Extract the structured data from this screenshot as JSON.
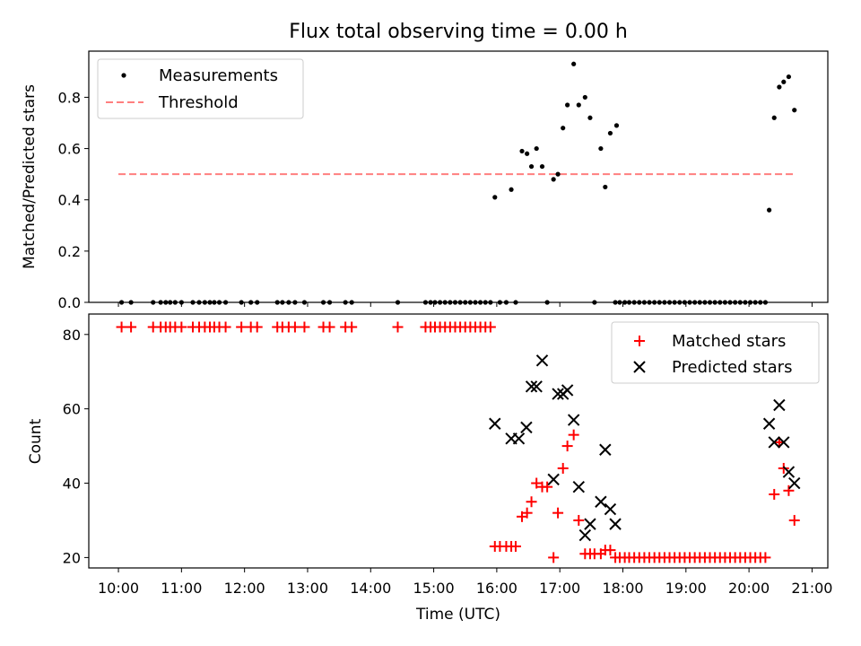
{
  "chart_data": {
    "title": "Flux total observing time = 0.00 h",
    "xlabel": "Time (UTC)",
    "x_ticks": [
      "10:00",
      "11:00",
      "12:00",
      "13:00",
      "14:00",
      "15:00",
      "16:00",
      "17:00",
      "18:00",
      "19:00",
      "20:00",
      "21:00"
    ],
    "xlim": [
      9.53,
      21.25
    ],
    "colors": {
      "measure": "#000000",
      "threshold": "#ff7f7f",
      "matched": "#ff0000",
      "predicted": "#000000"
    },
    "panels": [
      {
        "type": "scatter",
        "ylabel": "Matched/Predicted stars",
        "ylim": [
          0,
          0.98
        ],
        "y_ticks": [
          0.0,
          0.2,
          0.4,
          0.6,
          0.8
        ],
        "y_tick_labels": [
          "0.0",
          "0.2",
          "0.4",
          "0.6",
          "0.8"
        ],
        "legend_position": "upper-left",
        "legend": [
          "Measurements",
          "Threshold"
        ],
        "threshold": {
          "value": 0.5,
          "x_range": [
            10.0,
            20.72
          ]
        },
        "series": [
          {
            "name": "Measurements",
            "points": [
              [
                10.05,
                0
              ],
              [
                10.2,
                0
              ],
              [
                10.55,
                0
              ],
              [
                10.67,
                0
              ],
              [
                10.75,
                0
              ],
              [
                10.82,
                0
              ],
              [
                10.9,
                0
              ],
              [
                11.0,
                0
              ],
              [
                11.18,
                0
              ],
              [
                11.28,
                0
              ],
              [
                11.37,
                0
              ],
              [
                11.45,
                0
              ],
              [
                11.52,
                0
              ],
              [
                11.6,
                0
              ],
              [
                11.7,
                0
              ],
              [
                11.95,
                0
              ],
              [
                12.1,
                0
              ],
              [
                12.2,
                0
              ],
              [
                12.52,
                0
              ],
              [
                12.6,
                0
              ],
              [
                12.7,
                0
              ],
              [
                12.8,
                0
              ],
              [
                12.95,
                0
              ],
              [
                13.25,
                0
              ],
              [
                13.35,
                0
              ],
              [
                13.6,
                0
              ],
              [
                13.7,
                0
              ],
              [
                14.43,
                0
              ],
              [
                14.87,
                0
              ],
              [
                14.95,
                0
              ],
              [
                15.02,
                0
              ],
              [
                15.1,
                0
              ],
              [
                15.18,
                0
              ],
              [
                15.26,
                0
              ],
              [
                15.34,
                0
              ],
              [
                15.42,
                0
              ],
              [
                15.5,
                0
              ],
              [
                15.58,
                0
              ],
              [
                15.66,
                0
              ],
              [
                15.74,
                0
              ],
              [
                15.82,
                0
              ],
              [
                15.9,
                0
              ],
              [
                16.05,
                0
              ],
              [
                16.15,
                0
              ],
              [
                16.3,
                0
              ],
              [
                16.8,
                0
              ],
              [
                17.55,
                0
              ],
              [
                17.88,
                0
              ],
              [
                17.95,
                0
              ],
              [
                18.03,
                0
              ],
              [
                18.1,
                0
              ],
              [
                18.18,
                0
              ],
              [
                18.26,
                0
              ],
              [
                18.34,
                0
              ],
              [
                18.42,
                0
              ],
              [
                18.5,
                0
              ],
              [
                18.58,
                0
              ],
              [
                18.66,
                0
              ],
              [
                18.74,
                0
              ],
              [
                18.82,
                0
              ],
              [
                18.9,
                0
              ],
              [
                18.98,
                0
              ],
              [
                19.06,
                0
              ],
              [
                19.14,
                0
              ],
              [
                19.22,
                0
              ],
              [
                19.3,
                0
              ],
              [
                19.38,
                0
              ],
              [
                19.46,
                0
              ],
              [
                19.54,
                0
              ],
              [
                19.62,
                0
              ],
              [
                19.7,
                0
              ],
              [
                19.78,
                0
              ],
              [
                19.86,
                0
              ],
              [
                19.94,
                0
              ],
              [
                20.02,
                0
              ],
              [
                20.1,
                0
              ],
              [
                20.18,
                0
              ],
              [
                20.26,
                0
              ],
              [
                15.97,
                0.41
              ],
              [
                16.23,
                0.44
              ],
              [
                16.4,
                0.59
              ],
              [
                16.48,
                0.58
              ],
              [
                16.55,
                0.53
              ],
              [
                16.63,
                0.6
              ],
              [
                16.72,
                0.53
              ],
              [
                16.9,
                0.48
              ],
              [
                16.97,
                0.5
              ],
              [
                17.05,
                0.68
              ],
              [
                17.12,
                0.77
              ],
              [
                17.22,
                0.93
              ],
              [
                17.3,
                0.77
              ],
              [
                17.4,
                0.8
              ],
              [
                17.48,
                0.72
              ],
              [
                17.65,
                0.6
              ],
              [
                17.72,
                0.45
              ],
              [
                17.8,
                0.66
              ],
              [
                17.9,
                0.69
              ],
              [
                20.32,
                0.36
              ],
              [
                20.4,
                0.72
              ],
              [
                20.48,
                0.84
              ],
              [
                20.55,
                0.86
              ],
              [
                20.63,
                0.88
              ],
              [
                20.72,
                0.75
              ]
            ]
          }
        ]
      },
      {
        "type": "scatter",
        "ylabel": "Count",
        "ylim": [
          17.2,
          85.5
        ],
        "y_ticks": [
          20,
          40,
          60,
          80
        ],
        "y_tick_labels": [
          "20",
          "40",
          "60",
          "80"
        ],
        "legend_position": "upper-right",
        "legend": [
          "Matched stars",
          "Predicted stars"
        ],
        "series": [
          {
            "name": "Matched stars",
            "marker": "plus",
            "points": [
              [
                10.05,
                82
              ],
              [
                10.2,
                82
              ],
              [
                10.55,
                82
              ],
              [
                10.67,
                82
              ],
              [
                10.75,
                82
              ],
              [
                10.82,
                82
              ],
              [
                10.9,
                82
              ],
              [
                11.0,
                82
              ],
              [
                11.18,
                82
              ],
              [
                11.28,
                82
              ],
              [
                11.37,
                82
              ],
              [
                11.45,
                82
              ],
              [
                11.52,
                82
              ],
              [
                11.6,
                82
              ],
              [
                11.7,
                82
              ],
              [
                11.95,
                82
              ],
              [
                12.1,
                82
              ],
              [
                12.2,
                82
              ],
              [
                12.52,
                82
              ],
              [
                12.6,
                82
              ],
              [
                12.7,
                82
              ],
              [
                12.8,
                82
              ],
              [
                12.95,
                82
              ],
              [
                13.25,
                82
              ],
              [
                13.35,
                82
              ],
              [
                13.6,
                82
              ],
              [
                13.7,
                82
              ],
              [
                14.43,
                82
              ],
              [
                14.87,
                82
              ],
              [
                14.95,
                82
              ],
              [
                15.02,
                82
              ],
              [
                15.1,
                82
              ],
              [
                15.18,
                82
              ],
              [
                15.26,
                82
              ],
              [
                15.34,
                82
              ],
              [
                15.42,
                82
              ],
              [
                15.5,
                82
              ],
              [
                15.58,
                82
              ],
              [
                15.66,
                82
              ],
              [
                15.74,
                82
              ],
              [
                15.82,
                82
              ],
              [
                15.9,
                82
              ],
              [
                15.97,
                23
              ],
              [
                16.05,
                23
              ],
              [
                16.15,
                23
              ],
              [
                16.23,
                23
              ],
              [
                16.3,
                23
              ],
              [
                16.4,
                31
              ],
              [
                16.48,
                32
              ],
              [
                16.55,
                35
              ],
              [
                16.63,
                40
              ],
              [
                16.72,
                39
              ],
              [
                16.8,
                39
              ],
              [
                16.9,
                20
              ],
              [
                16.97,
                32
              ],
              [
                17.05,
                44
              ],
              [
                17.12,
                50
              ],
              [
                17.22,
                53
              ],
              [
                17.3,
                30
              ],
              [
                17.4,
                21
              ],
              [
                17.48,
                21
              ],
              [
                17.55,
                21
              ],
              [
                17.65,
                21
              ],
              [
                17.72,
                22
              ],
              [
                17.8,
                22
              ],
              [
                17.88,
                20
              ],
              [
                17.95,
                20
              ],
              [
                18.03,
                20
              ],
              [
                18.1,
                20
              ],
              [
                18.18,
                20
              ],
              [
                18.26,
                20
              ],
              [
                18.34,
                20
              ],
              [
                18.42,
                20
              ],
              [
                18.5,
                20
              ],
              [
                18.58,
                20
              ],
              [
                18.66,
                20
              ],
              [
                18.74,
                20
              ],
              [
                18.82,
                20
              ],
              [
                18.9,
                20
              ],
              [
                18.98,
                20
              ],
              [
                19.06,
                20
              ],
              [
                19.14,
                20
              ],
              [
                19.22,
                20
              ],
              [
                19.3,
                20
              ],
              [
                19.38,
                20
              ],
              [
                19.46,
                20
              ],
              [
                19.54,
                20
              ],
              [
                19.62,
                20
              ],
              [
                19.7,
                20
              ],
              [
                19.78,
                20
              ],
              [
                19.86,
                20
              ],
              [
                19.94,
                20
              ],
              [
                20.02,
                20
              ],
              [
                20.1,
                20
              ],
              [
                20.18,
                20
              ],
              [
                20.26,
                20
              ],
              [
                20.4,
                37
              ],
              [
                20.48,
                51
              ],
              [
                20.55,
                44
              ],
              [
                20.63,
                38
              ],
              [
                20.72,
                30
              ]
            ]
          },
          {
            "name": "Predicted stars",
            "marker": "x",
            "points": [
              [
                15.97,
                56
              ],
              [
                16.23,
                52
              ],
              [
                16.35,
                52
              ],
              [
                16.47,
                55
              ],
              [
                16.55,
                66
              ],
              [
                16.63,
                66
              ],
              [
                16.72,
                73
              ],
              [
                16.9,
                41
              ],
              [
                16.97,
                64
              ],
              [
                17.05,
                64
              ],
              [
                17.12,
                65
              ],
              [
                17.22,
                57
              ],
              [
                17.3,
                39
              ],
              [
                17.4,
                26
              ],
              [
                17.48,
                29
              ],
              [
                17.65,
                35
              ],
              [
                17.72,
                49
              ],
              [
                17.8,
                33
              ],
              [
                17.88,
                29
              ],
              [
                20.32,
                56
              ],
              [
                20.4,
                51
              ],
              [
                20.48,
                61
              ],
              [
                20.55,
                51
              ],
              [
                20.63,
                43
              ],
              [
                20.72,
                40
              ]
            ]
          }
        ]
      }
    ]
  }
}
